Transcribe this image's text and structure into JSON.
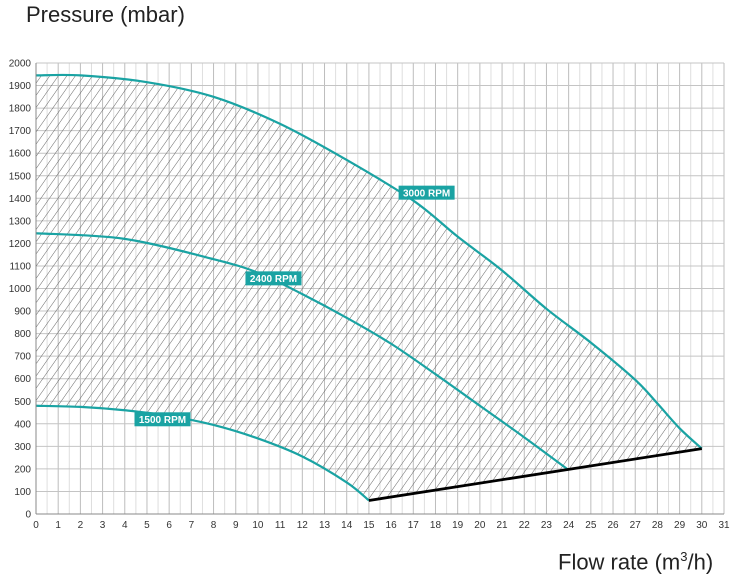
{
  "chart_data": {
    "type": "area",
    "ylabel": "Pressure (mbar)",
    "xlabel_prefix": "Flow rate (m",
    "xlabel_sup": "3",
    "xlabel_suffix": "/h)",
    "xlim": [
      0,
      31
    ],
    "ylim": [
      0,
      2000
    ],
    "x_ticks": [
      0,
      1,
      2,
      3,
      4,
      5,
      6,
      7,
      8,
      9,
      10,
      11,
      12,
      13,
      14,
      15,
      16,
      17,
      18,
      19,
      20,
      21,
      22,
      23,
      24,
      25,
      26,
      27,
      28,
      29,
      30,
      31
    ],
    "y_ticks": [
      0,
      100,
      200,
      300,
      400,
      500,
      600,
      700,
      800,
      900,
      1000,
      1100,
      1200,
      1300,
      1400,
      1500,
      1600,
      1700,
      1800,
      1900,
      2000
    ],
    "grid": true,
    "series": [
      {
        "name": "1500 RPM",
        "color": "#1aa3a3",
        "points": [
          [
            0,
            480
          ],
          [
            2,
            475
          ],
          [
            4,
            460
          ],
          [
            6,
            435
          ],
          [
            8,
            395
          ],
          [
            10,
            335
          ],
          [
            12,
            255
          ],
          [
            14,
            140
          ],
          [
            15,
            60
          ]
        ]
      },
      {
        "name": "2400 RPM",
        "color": "#1aa3a3",
        "points": [
          [
            0,
            1245
          ],
          [
            4,
            1220
          ],
          [
            8,
            1130
          ],
          [
            10,
            1070
          ],
          [
            12,
            975
          ],
          [
            14,
            870
          ],
          [
            16,
            755
          ],
          [
            18,
            620
          ],
          [
            20,
            480
          ],
          [
            22,
            340
          ],
          [
            24,
            195
          ]
        ]
      },
      {
        "name": "3000 RPM",
        "color": "#1aa3a3",
        "points": [
          [
            0,
            1945
          ],
          [
            2,
            1945
          ],
          [
            5,
            1915
          ],
          [
            8,
            1850
          ],
          [
            11,
            1730
          ],
          [
            14,
            1570
          ],
          [
            17,
            1390
          ],
          [
            19,
            1230
          ],
          [
            21,
            1080
          ],
          [
            23,
            910
          ],
          [
            25,
            760
          ],
          [
            27,
            595
          ],
          [
            28,
            490
          ],
          [
            29,
            380
          ],
          [
            30,
            290
          ]
        ]
      }
    ],
    "limit_line": {
      "color": "#000000",
      "points": [
        [
          15,
          60
        ],
        [
          24,
          195
        ],
        [
          30,
          290
        ]
      ]
    },
    "labels": [
      {
        "series": "1500 RPM",
        "text": "1500 RPM",
        "x": 5.7,
        "y": 420
      },
      {
        "series": "2400 RPM",
        "text": "2400 RPM",
        "x": 10.7,
        "y": 1045
      },
      {
        "series": "3000 RPM",
        "text": "3000 RPM",
        "x": 17.6,
        "y": 1425
      }
    ]
  }
}
